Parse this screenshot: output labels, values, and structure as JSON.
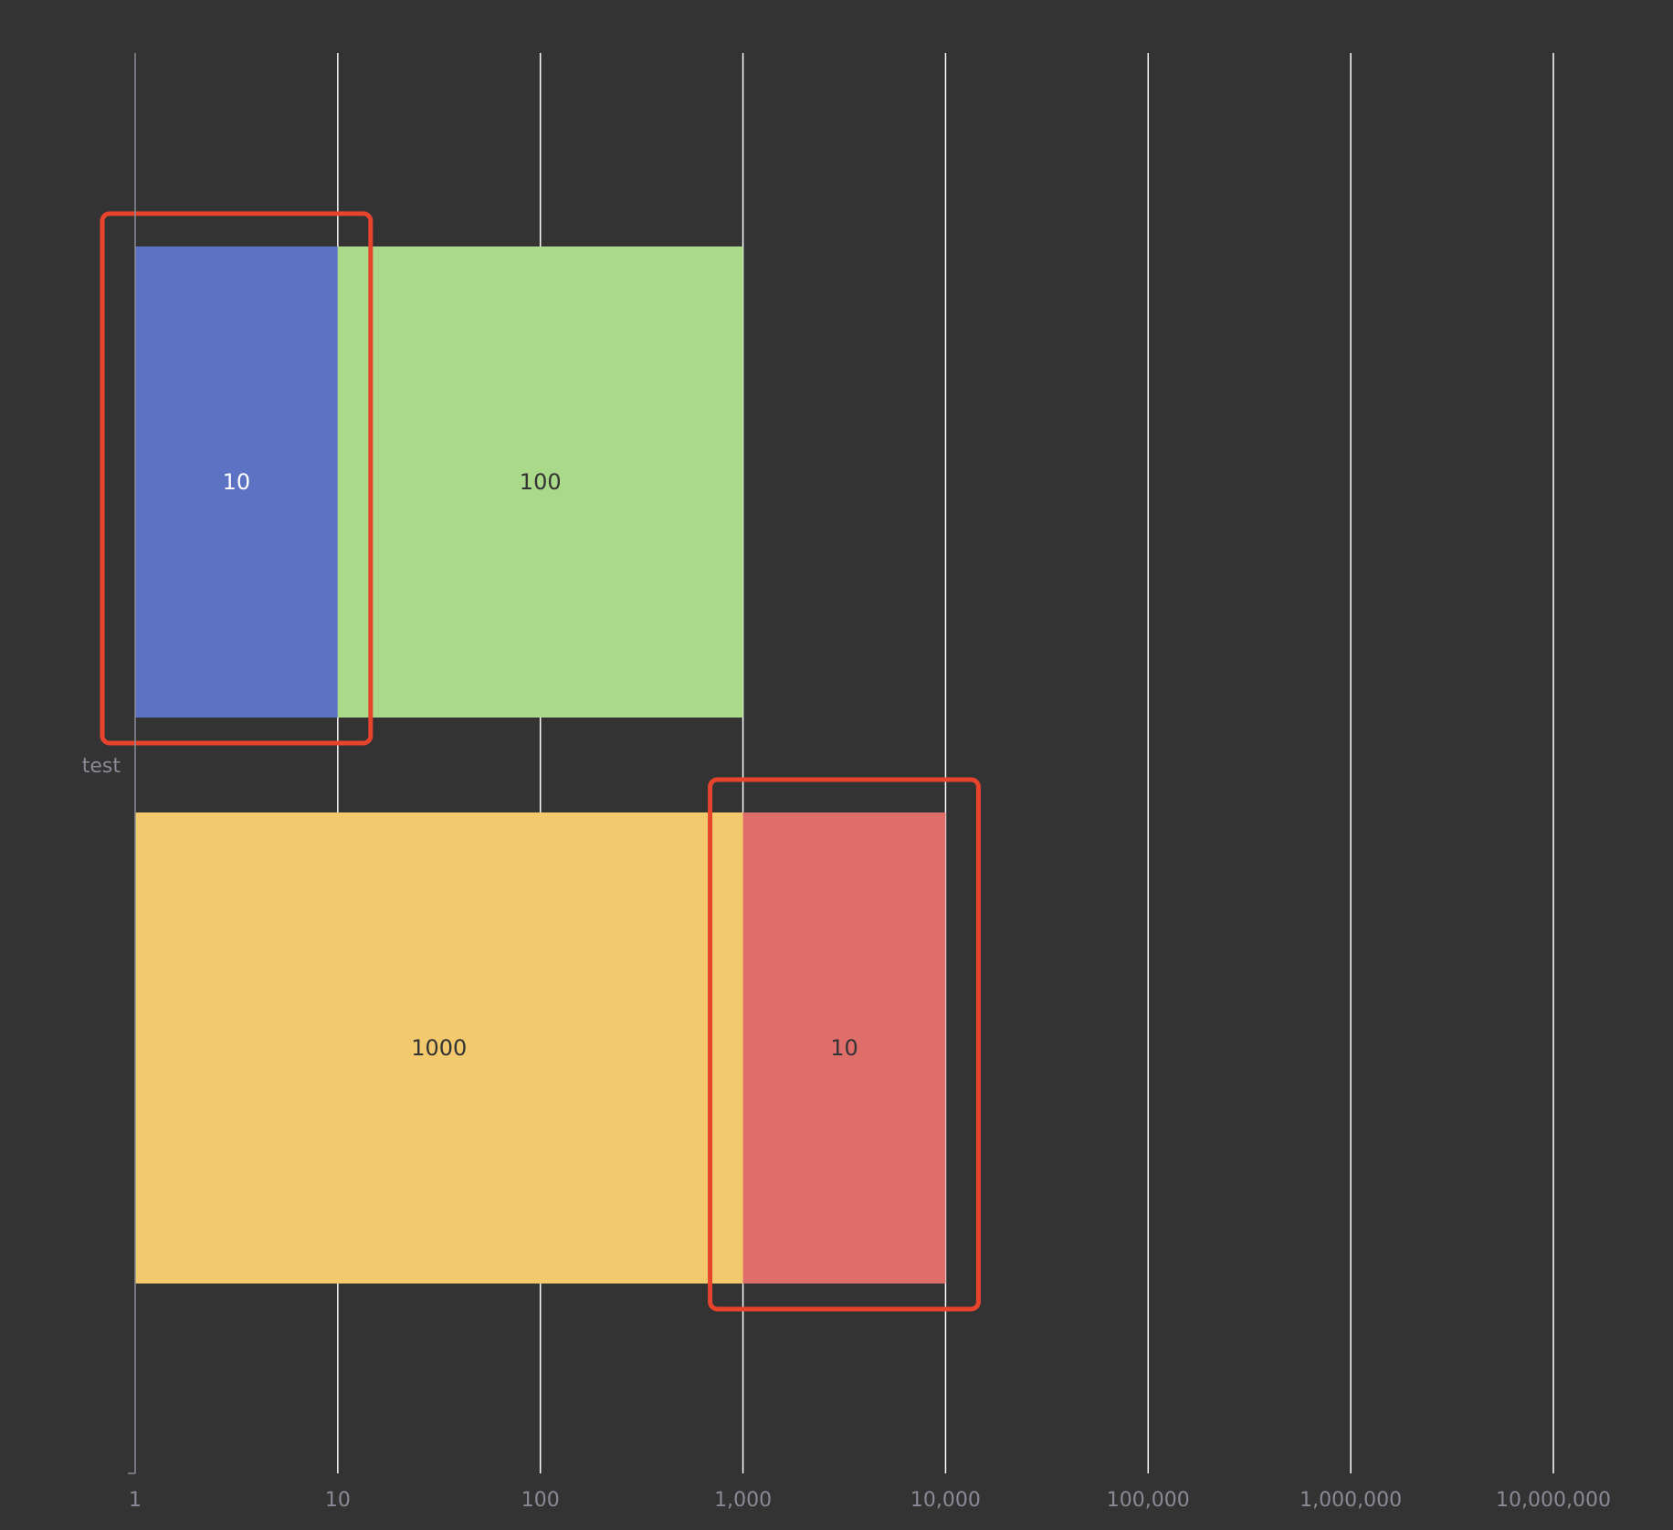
{
  "chart_data": {
    "type": "bar",
    "orientation": "horizontal",
    "stacked": true,
    "x_scale": "log",
    "xlim": [
      1,
      10000000
    ],
    "x_ticks": [
      1,
      10,
      100,
      1000,
      10000,
      100000,
      1000000,
      10000000
    ],
    "x_tick_labels": [
      "1",
      "10",
      "100",
      "1,000",
      "10,000",
      "100,000",
      "1,000,000",
      "10,000,000"
    ],
    "categories": [
      "test"
    ],
    "grid": true,
    "legend": "none",
    "stack_groups": [
      {
        "segments": [
          {
            "label": "10",
            "start": 1,
            "end": 10,
            "color": "#5b73c2"
          },
          {
            "label": "100",
            "start": 10,
            "end": 1000,
            "color": "#aad989"
          }
        ]
      },
      {
        "segments": [
          {
            "label": "1000",
            "start": 1,
            "end": 1000,
            "color": "#f2c96d"
          },
          {
            "label": "10",
            "start": 1000,
            "end": 10000,
            "color": "#df6d6a"
          }
        ]
      }
    ],
    "highlights": [
      {
        "group": 0,
        "segment": 0,
        "color": "#e8432d"
      },
      {
        "group": 1,
        "segment": 1,
        "color": "#e8432d"
      }
    ],
    "colors": {
      "background": "#333333",
      "grid": "#ffffff",
      "axis": "#8a8a96",
      "label_light": "#ffffff",
      "label_dark": "#333333"
    }
  }
}
